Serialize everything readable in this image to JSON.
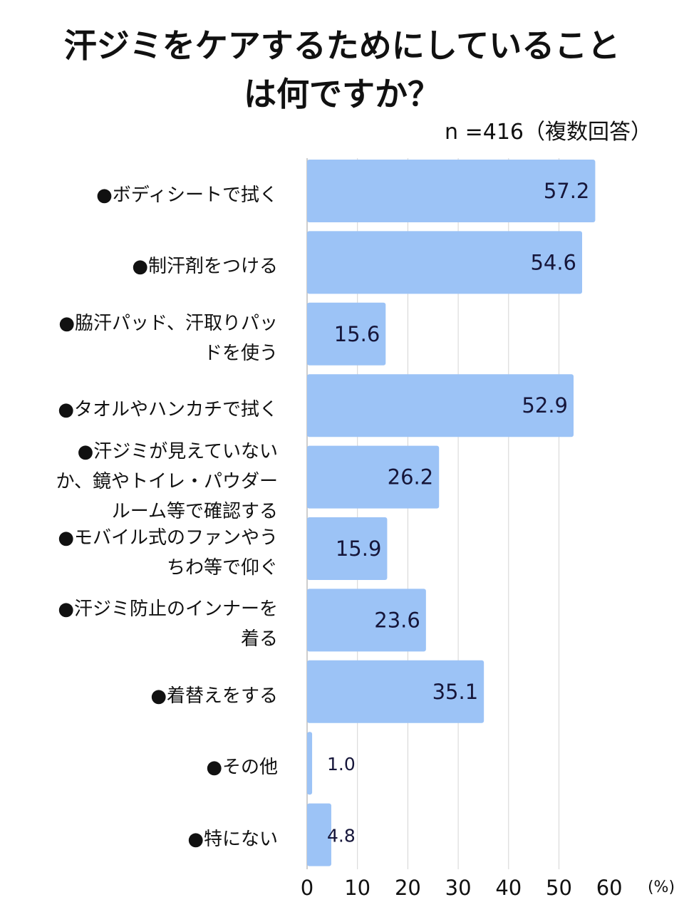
{
  "chart_data": {
    "type": "bar",
    "orientation": "horizontal",
    "title": "汗ジミをケアするためにしていること\nは何ですか？",
    "title_lines": [
      "汗ジミをケアするためにしていること",
      "は何ですか？"
    ],
    "subtitle": "n =416（複数回答）",
    "categories": [
      "●ボディシートで拭く",
      "●制汗剤をつける",
      "●脇汗パッド、汗取りパッ\nドを使う",
      "●タオルやハンカチで拭く",
      "●汗ジミが見えていない\nか、鏡やトイレ・パウダー\nルーム等で確認する",
      "●モバイル式のファンやう\nちわ等で仰ぐ",
      "●汗ジミ防止のインナーを\n着る",
      "●着替えをする",
      "●その他",
      "●特にない"
    ],
    "values": [
      57.2,
      54.6,
      15.6,
      52.9,
      26.2,
      15.9,
      23.6,
      35.1,
      1.0,
      4.8
    ],
    "value_labels": [
      "57.2",
      "54.6",
      "15.6",
      "52.9",
      "26.2",
      "15.9",
      "23.6",
      "35.1",
      "1.0",
      "4.8"
    ],
    "x_ticks": [
      "0",
      "10",
      "20",
      "30",
      "40",
      "50",
      "60"
    ],
    "xlim": [
      0,
      60
    ],
    "xlabel": "(%)",
    "grid": true,
    "bar_color": "#9cc3f6",
    "grid_color": "#d4d4d4",
    "label_color": "#16163a"
  }
}
